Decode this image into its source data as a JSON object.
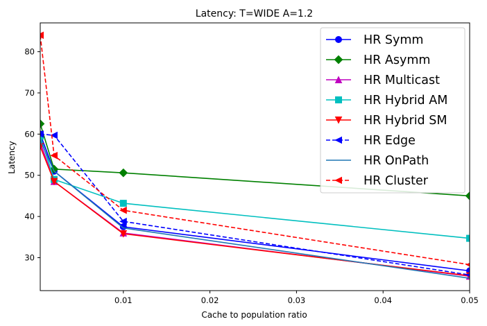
{
  "chart_data": {
    "type": "line",
    "title": "Latency: T=WIDE A=1.2",
    "xlabel": "Cache to population ratio",
    "ylabel": "Latency",
    "xlim": [
      0.0004,
      0.05
    ],
    "ylim": [
      22,
      87
    ],
    "xticks": [
      0.01,
      0.02,
      0.03,
      0.04,
      0.05
    ],
    "xtick_labels": [
      "0.01",
      "0.02",
      "0.03",
      "0.04",
      "0.05"
    ],
    "yticks": [
      30,
      40,
      50,
      60,
      70,
      80
    ],
    "ytick_labels": [
      "30",
      "40",
      "50",
      "60",
      "70",
      "80"
    ],
    "grid": false,
    "legend_position": "top-right",
    "series": [
      {
        "name": "HR Symm",
        "color": "#0000ff",
        "marker": "circle",
        "dash": "solid",
        "x": [
          0.0004,
          0.002,
          0.01,
          0.05
        ],
        "y": [
          60.0,
          51.0,
          37.5,
          26.8
        ]
      },
      {
        "name": "HR Asymm",
        "color": "#008000",
        "marker": "diamond",
        "dash": "solid",
        "x": [
          0.0004,
          0.002,
          0.01,
          0.05
        ],
        "y": [
          62.5,
          51.5,
          50.6,
          45.0
        ]
      },
      {
        "name": "HR Multicast",
        "color": "#bf00bf",
        "marker": "triangle-up",
        "dash": "solid",
        "x": [
          0.0004,
          0.002,
          0.01,
          0.05
        ],
        "y": [
          58.0,
          48.5,
          36.0,
          25.5
        ]
      },
      {
        "name": "HR Hybrid AM",
        "color": "#00bfbf",
        "marker": "square",
        "dash": "solid",
        "x": [
          0.0004,
          0.002,
          0.01,
          0.05
        ],
        "y": [
          59.5,
          49.0,
          43.2,
          34.7
        ]
      },
      {
        "name": "HR Hybrid SM",
        "color": "#ff0000",
        "marker": "triangle-down",
        "dash": "solid",
        "x": [
          0.0004,
          0.002,
          0.01,
          0.05
        ],
        "y": [
          57.0,
          48.5,
          35.8,
          25.6
        ]
      },
      {
        "name": "HR Edge",
        "color": "#0000ff",
        "marker": "triangle-left",
        "dash": "dashed",
        "x": [
          0.0004,
          0.002,
          0.01,
          0.05
        ],
        "y": [
          60.0,
          59.7,
          38.8,
          25.8
        ]
      },
      {
        "name": "HR OnPath",
        "color": "#1f77b4",
        "marker": "none",
        "dash": "solid",
        "x": [
          0.0004,
          0.002,
          0.01,
          0.05
        ],
        "y": [
          58.5,
          51.0,
          37.2,
          25.0
        ]
      },
      {
        "name": "HR Cluster",
        "color": "#ff0000",
        "marker": "triangle-left",
        "dash": "dashed",
        "x": [
          0.0004,
          0.002,
          0.01,
          0.05
        ],
        "y": [
          84.0,
          54.8,
          41.5,
          28.3
        ]
      }
    ]
  }
}
